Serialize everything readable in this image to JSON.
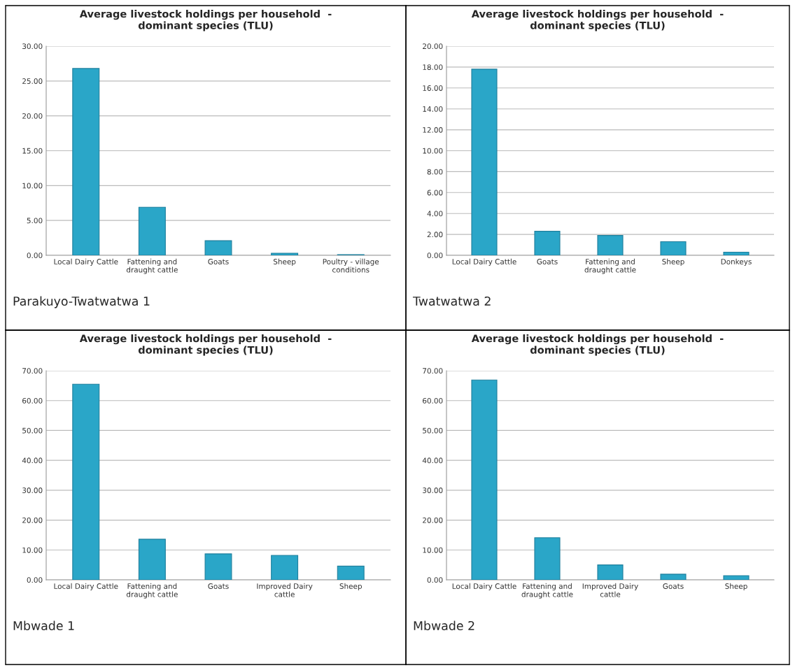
{
  "chart_data": [
    {
      "type": "bar",
      "title": "Average livestock holdings per household  -\ndominant species (TLU)",
      "categories": [
        "Local Dairy Cattle",
        "Fattening and\ndraught cattle",
        "Goats",
        "Sheep",
        "Poultry - village\nconditions"
      ],
      "values": [
        26.8,
        6.9,
        2.1,
        0.3,
        0.1
      ],
      "color": "#2aa6c8",
      "ylim": [
        0,
        30
      ],
      "yticks": [
        {
          "value": 0,
          "label": "0.00"
        },
        {
          "value": 5,
          "label": "5.00"
        },
        {
          "value": 10,
          "label": "10.00"
        },
        {
          "value": 15,
          "label": "15.00"
        },
        {
          "value": 20,
          "label": "20.00"
        },
        {
          "value": 25,
          "label": "25.00"
        },
        {
          "value": 30,
          "label": "30.00"
        }
      ],
      "grid": "y",
      "annotations": [
        "Parakuyo-Twatwatwa 1"
      ]
    },
    {
      "type": "bar",
      "title": "Average livestock holdings per household  -\ndominant species (TLU)",
      "categories": [
        "Local Dairy Cattle",
        "Goats",
        "Fattening and\ndraught cattle",
        "Sheep",
        "Donkeys"
      ],
      "values": [
        17.8,
        2.3,
        1.9,
        1.3,
        0.3
      ],
      "color": "#2aa6c8",
      "ylim": [
        0,
        20
      ],
      "yticks": [
        {
          "value": 0,
          "label": "0.00"
        },
        {
          "value": 2,
          "label": "2.00"
        },
        {
          "value": 4,
          "label": "4.00"
        },
        {
          "value": 6,
          "label": "6.00"
        },
        {
          "value": 8,
          "label": "8.00"
        },
        {
          "value": 10,
          "label": "10.00"
        },
        {
          "value": 12,
          "label": "12.00"
        },
        {
          "value": 14,
          "label": "14.00"
        },
        {
          "value": 16,
          "label": "16.00"
        },
        {
          "value": 18,
          "label": "18.00"
        },
        {
          "value": 20,
          "label": "20.00"
        }
      ],
      "grid": "y",
      "annotations": [
        "Twatwatwa 2"
      ]
    },
    {
      "type": "bar",
      "title": "Average livestock holdings per household  -\ndominant species (TLU)",
      "categories": [
        "Local Dairy Cattle",
        "Fattening and\ndraught cattle",
        "Goats",
        "Improved Dairy\ncattle",
        "Sheep"
      ],
      "values": [
        65.5,
        13.6,
        8.7,
        8.2,
        4.6
      ],
      "color": "#2aa6c8",
      "ylim": [
        0,
        70
      ],
      "yticks": [
        {
          "value": 0,
          "label": "0.00"
        },
        {
          "value": 10,
          "label": "10.00"
        },
        {
          "value": 20,
          "label": "20.00"
        },
        {
          "value": 30,
          "label": "30.00"
        },
        {
          "value": 40,
          "label": "40.00"
        },
        {
          "value": 50,
          "label": "50.00"
        },
        {
          "value": 60,
          "label": "60.00"
        },
        {
          "value": 70,
          "label": "70.00"
        }
      ],
      "grid": "y",
      "annotations": [
        "Mbwade 1"
      ]
    },
    {
      "type": "bar",
      "title": "Average livestock holdings per household  -\ndominant species (TLU)",
      "categories": [
        "Local Dairy Cattle",
        "Fattening and\ndraught cattle",
        "Improved Dairy\ncattle",
        "Goats",
        "Sheep"
      ],
      "values": [
        66.9,
        14.1,
        5.0,
        1.9,
        1.4
      ],
      "color": "#2aa6c8",
      "ylim": [
        0,
        70
      ],
      "yticks": [
        {
          "value": 0,
          "label": "0.00"
        },
        {
          "value": 10,
          "label": "10.00"
        },
        {
          "value": 20,
          "label": "20.00"
        },
        {
          "value": 30,
          "label": "30.00"
        },
        {
          "value": 40,
          "label": "40.00"
        },
        {
          "value": 50,
          "label": "50.00"
        },
        {
          "value": 60,
          "label": "60.00"
        },
        {
          "value": 70,
          "label": "70.00"
        }
      ],
      "grid": "y",
      "annotations": [
        "Mbwade 2"
      ]
    }
  ]
}
